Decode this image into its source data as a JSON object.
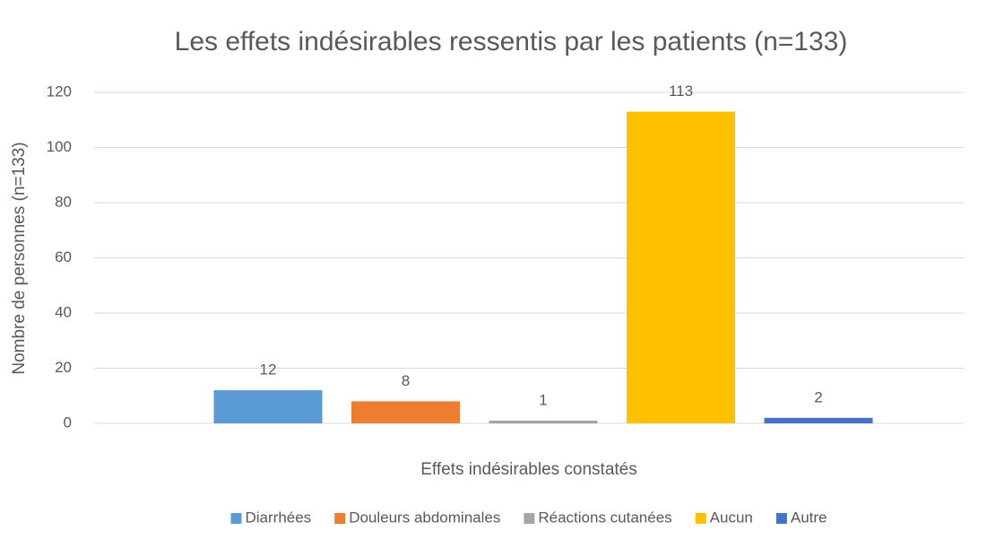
{
  "chart_data": {
    "type": "bar",
    "title": "Les effets indésirables ressentis par les patients (n=133)",
    "x_label": "Effets indésirables constatés",
    "y_label": "Nombre de personnes (n=133)",
    "categories": [
      null
    ],
    "series": [
      {
        "name": "Diarrhées",
        "color": "#5b9bd5",
        "values": [
          12
        ]
      },
      {
        "name": "Douleurs abdominales",
        "color": "#ed7d31",
        "values": [
          8
        ]
      },
      {
        "name": "Réactions cutanées",
        "color": "#a5a5a5",
        "values": [
          1
        ]
      },
      {
        "name": "Aucun",
        "color": "#ffc000",
        "values": [
          113
        ]
      },
      {
        "name": "Autre",
        "color": "#4472c4",
        "values": [
          2
        ]
      }
    ],
    "ylim": [
      0,
      120
    ],
    "yticks": [
      0,
      20,
      40,
      60,
      80,
      100,
      120
    ],
    "grid": true,
    "legend": "bottom"
  }
}
